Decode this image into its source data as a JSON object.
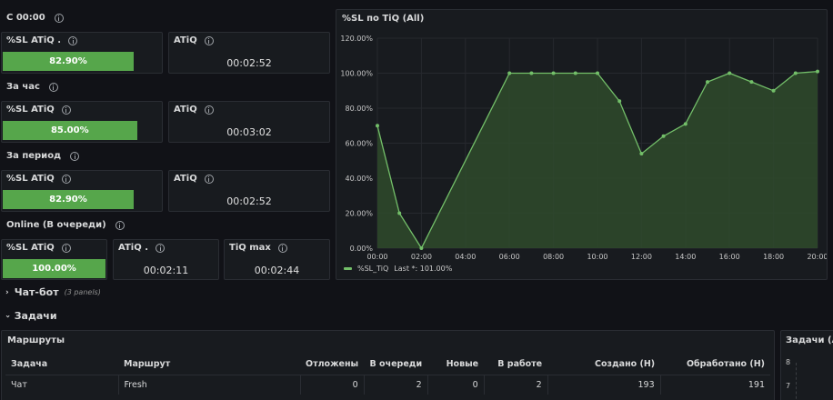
{
  "blocks": {
    "today": {
      "label": "С 00:00",
      "sl_title": "%SL ATiQ .",
      "sl_value": "82.90%",
      "sl_level": 82.9,
      "atiq_title": "ATiQ",
      "atiq_value": "00:02:52"
    },
    "hour": {
      "label": "За час",
      "sl_title": "%SL ATiQ",
      "sl_value": "85.00%",
      "sl_level": 85.0,
      "atiq_title": "ATiQ",
      "atiq_value": "00:03:02"
    },
    "period": {
      "label": "За период",
      "sl_title": "%SL ATiQ",
      "sl_value": "82.90%",
      "sl_level": 82.9,
      "atiq_title": "ATiQ",
      "atiq_value": "00:02:52"
    },
    "online": {
      "label": "Online (В очереди)",
      "sl_title": "%SL ATiQ",
      "sl_value": "100.00%",
      "sl_level": 100.0,
      "atiq_title": "ATiQ .",
      "atiq_value": "00:02:11",
      "tiq_title": "TiQ max",
      "tiq_value": "00:02:44"
    }
  },
  "chart_panel": {
    "title": "%SL по TiQ (All)",
    "legend_label": "%SL_TiQ",
    "legend_last": "Last *: 101.00%"
  },
  "chart_data": {
    "type": "area",
    "x": [
      "00:00",
      "01:00",
      "02:00",
      "06:00",
      "07:00",
      "08:00",
      "09:00",
      "10:00",
      "11:00",
      "12:00",
      "13:00",
      "14:00",
      "15:00",
      "16:00",
      "17:00",
      "18:00",
      "19:00",
      "20:00"
    ],
    "x_ticks": [
      "00:00",
      "02:00",
      "04:00",
      "06:00",
      "08:00",
      "10:00",
      "12:00",
      "14:00",
      "16:00",
      "18:00",
      "20:00"
    ],
    "y_ticks": [
      "0.00%",
      "20.00%",
      "40.00%",
      "60.00%",
      "80.00%",
      "100.00%",
      "120.00%"
    ],
    "series": [
      {
        "name": "%SL_TiQ",
        "values": [
          70,
          20,
          0,
          100,
          100,
          100,
          100,
          100,
          84,
          54,
          64,
          71,
          95,
          100,
          95,
          90,
          100,
          101
        ]
      }
    ],
    "ylim": [
      0,
      120
    ],
    "xlim_hours": [
      0,
      20
    ],
    "grid": true,
    "legend": "bottom-left",
    "colors": {
      "line": "#73bf69",
      "fill": "#2f4a2b"
    }
  },
  "rows": {
    "chatbot": {
      "label": "Чат-бот",
      "sub": "(3 panels)"
    },
    "tasks": {
      "label": "Задачи"
    }
  },
  "routes_panel": {
    "title": "Маршруты",
    "columns": [
      "Задача",
      "Маршрут",
      "Отложены",
      "В очереди",
      "Новые",
      "В работе",
      "Создано (Н)",
      "Обработано (Н)"
    ],
    "rows": [
      [
        "Чат",
        "Fresh",
        "0",
        "2",
        "0",
        "2",
        "193",
        "191"
      ]
    ]
  },
  "tasks_side_panel": {
    "title": "Задачи (All",
    "y_ticks": [
      "8",
      "7"
    ]
  },
  "colors": {
    "background": "#111217",
    "panel": "#181b1f",
    "green": "#56a64b",
    "line": "#73bf69"
  }
}
